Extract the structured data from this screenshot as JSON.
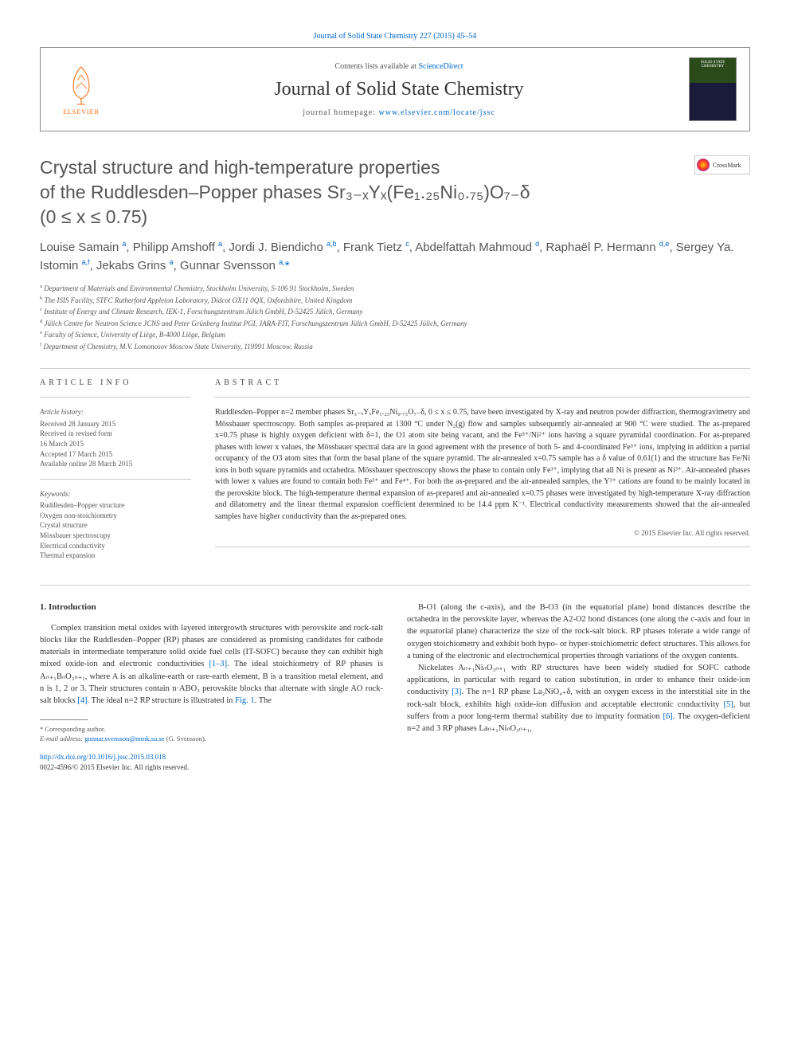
{
  "top_link": "Journal of Solid State Chemistry 227 (2015) 45–54",
  "header": {
    "contents_prefix": "Contents lists available at ",
    "contents_link": "ScienceDirect",
    "journal_name": "Journal of Solid State Chemistry",
    "homepage_prefix": "journal homepage: ",
    "homepage_link": "www.elsevier.com/locate/jssc",
    "elsevier": "ELSEVIER",
    "cover_text": "SOLID STATE CHEMISTRY"
  },
  "crossmark": "CrossMark",
  "title_lines": [
    "Crystal structure and high-temperature properties",
    "of the Ruddlesden–Popper phases Sr₃₋ₓYₓ(Fe₁.₂₅Ni₀.₇₅)O₇₋δ",
    "(0 ≤ x ≤ 0.75)"
  ],
  "authors_html": "Louise Samain <sup>a</sup>, Philipp Amshoff <sup>a</sup>, Jordi J. Biendicho <sup>a,b</sup>, Frank Tietz <sup>c</sup>, Abdelfattah Mahmoud <sup>d</sup>, Raphaël P. Hermann <sup>d,e</sup>, Sergey Ya. Istomin <sup>a,f</sup>, Jekabs Grins <sup>a</sup>, Gunnar Svensson <sup>a,</sup><span class='star'>*</span>",
  "affiliations": [
    {
      "sup": "a",
      "text": "Department of Materials and Environmental Chemistry, Stockholm University, S-106 91 Stockholm, Sweden"
    },
    {
      "sup": "b",
      "text": "The ISIS Facility, STFC Rutherford Appleton Laboratory, Didcot OX11 0QX, Oxfordshire, United Kingdom"
    },
    {
      "sup": "c",
      "text": "Institute of Energy and Climate Research, IEK-1, Forschungszentrum Jülich GmbH, D-52425 Jülich, Germany"
    },
    {
      "sup": "d",
      "text": "Jülich Centre for Neutron Science JCNS and Peter Grünberg Institut PGI, JARA-FIT, Forschungszentrum Jülich GmbH, D-52425 Jülich, Germany"
    },
    {
      "sup": "e",
      "text": "Faculty of Science, University of Liège, B-4000 Liège, Belgium"
    },
    {
      "sup": "f",
      "text": "Department of Chemistry, M.V. Lomonosov Moscow State University, 119991 Moscow, Russia"
    }
  ],
  "info": {
    "heading": "ARTICLE INFO",
    "history_head": "Article history:",
    "history": [
      "Received 28 January 2015",
      "Received in revised form",
      "16 March 2015",
      "Accepted 17 March 2015",
      "Available online 28 March 2015"
    ],
    "keywords_head": "Keywords:",
    "keywords": [
      "Ruddlesden–Popper structure",
      "Oxygen non-stoichiometry",
      "Crystal structure",
      "Mössbauer spectroscopy",
      "Electrical conductivity",
      "Thermal expansion"
    ]
  },
  "abstract": {
    "heading": "ABSTRACT",
    "text": "Ruddlesden–Popper n=2 member phases Sr₃₋ₓYₓFe₁.₂₅Ni₀.₇₅O₇₋δ, 0 ≤ x ≤ 0.75, have been investigated by X-ray and neutron powder diffraction, thermogravimetry and Mössbauer spectroscopy. Both samples as-prepared at 1300 °C under N₂(g) flow and samples subsequently air-annealed at 900 °C were studied. The as-prepared x=0.75 phase is highly oxygen deficient with δ=1, the O1 atom site being vacant, and the Fe³⁺/Ni²⁺ ions having a square pyramidal coordination. For as-prepared phases with lower x values, the Mössbauer spectral data are in good agreement with the presence of both 5- and 4-coordinated Fe³⁺ ions, implying in addition a partial occupancy of the O3 atom sites that form the basal plane of the square pyramid. The air-annealed x=0.75 sample has a δ value of 0.61(1) and the structure has Fe/Ni ions in both square pyramids and octahedra. Mössbauer spectroscopy shows the phase to contain only Fe³⁺, implying that all Ni is present as Ni³⁺. Air-annealed phases with lower x values are found to contain both Fe³⁺ and Fe⁴⁺. For both the as-prepared and the air-annealed samples, the Y³⁺ cations are found to be mainly located in the perovskite block. The high-temperature thermal expansion of as-prepared and air-annealed x=0.75 phases were investigated by high-temperature X-ray diffraction and dilatometry and the linear thermal expansion coefficient determined to be 14.4 ppm K⁻¹. Electrical conductivity measurements showed that the air-annealed samples have higher conductivity than the as-prepared ones.",
    "copyright": "© 2015 Elsevier Inc. All rights reserved."
  },
  "body": {
    "section_head": "1. Introduction",
    "left_para": "Complex transition metal oxides with layered intergrowth structures with perovskite and rock-salt blocks like the Ruddlesden–Popper (RP) phases are considered as promising candidates for cathode materials in intermediate temperature solid oxide fuel cells (IT-SOFC) because they can exhibit high mixed oxide-ion and electronic conductivities [1–3]. The ideal stoichiometry of RP phases is Aₙ₊₁BₙO₃ₙ₊₁, where A is an alkaline-earth or rare-earth element, B is a transition metal element, and n is 1, 2 or 3. Their structures contain n·ABO₃ perovskite blocks that alternate with single AO rock-salt blocks [4]. The ideal n=2 RP structure is illustrated in Fig. 1. The",
    "right_para1": "B-O1 (along the c-axis), and the B-O3 (in the equatorial plane) bond distances describe the octahedra in the perovskite layer, whereas the A2-O2 bond distances (one along the c-axis and four in the equatorial plane) characterize the size of the rock-salt block. RP phases tolerate a wide range of oxygen stoichiometry and exhibit both hypo- or hyper-stoichiometric defect structures. This allows for a tuning of the electronic and electrochemical properties through variations of the oxygen contents.",
    "right_para2": "Nickelates Aₙ₊₁NiₙO₃ₙ₊₁ with RP structures have been widely studied for SOFC cathode applications, in particular with regard to cation substitution, in order to enhance their oxide-ion conductivity [3]. The n=1 RP phase La₂NiO₄₊δ, with an oxygen excess in the interstitial site in the rock-salt block, exhibits high oxide-ion diffusion and acceptable electronic conductivity [5], but suffers from a poor long-term thermal stability due to impurity formation [6]. The oxygen-deficient n=2 and 3 RP phases Laₙ₊₁NiₙO₃ₙ₊₁,"
  },
  "footnote": {
    "corr": "* Corresponding author.",
    "email_label": "E-mail address: ",
    "email": "gunnar.svensson@mmk.su.se",
    "email_suffix": " (G. Svensson)."
  },
  "footer": {
    "doi": "http://dx.doi.org/10.1016/j.jssc.2015.03.018",
    "rights": "0022-4596/© 2015 Elsevier Inc. All rights reserved."
  },
  "refs": {
    "r1": "[1–3]",
    "r4": "[4]",
    "fig1": "Fig. 1",
    "r3": "[3]",
    "r5": "[5]",
    "r6": "[6]"
  },
  "colors": {
    "link": "#0066cc",
    "text": "#333333",
    "muted": "#555555",
    "border": "#888888",
    "elsevier_orange": "#ff6600"
  }
}
